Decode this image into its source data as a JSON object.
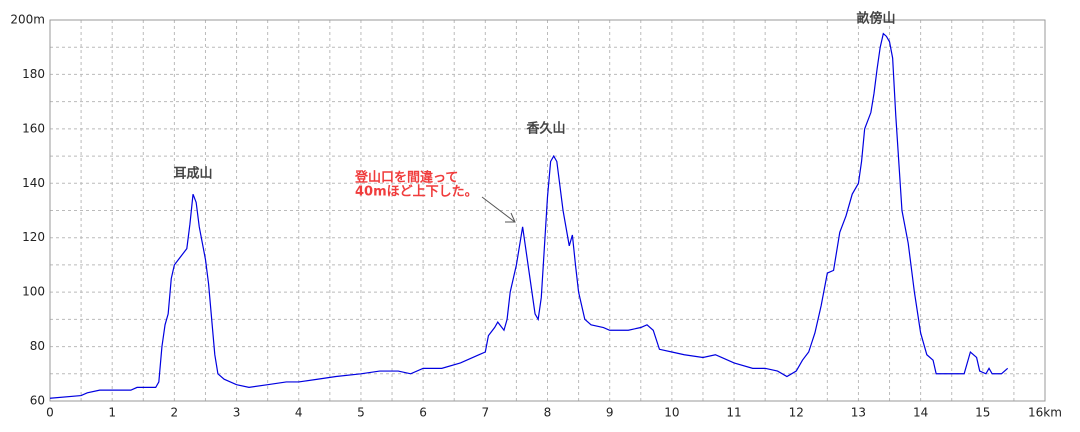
{
  "chart_data": {
    "type": "line",
    "x": [
      0,
      0.5,
      0.6,
      0.8,
      1.0,
      1.3,
      1.4,
      1.7,
      1.75,
      1.8,
      1.85,
      1.9,
      1.95,
      2.0,
      2.1,
      2.2,
      2.25,
      2.3,
      2.35,
      2.4,
      2.5,
      2.55,
      2.6,
      2.65,
      2.7,
      2.8,
      3.0,
      3.2,
      3.5,
      3.8,
      4.0,
      4.3,
      4.6,
      5.0,
      5.3,
      5.6,
      5.8,
      6.0,
      6.3,
      6.6,
      6.9,
      7.0,
      7.05,
      7.15,
      7.2,
      7.3,
      7.35,
      7.4,
      7.5,
      7.6,
      7.7,
      7.8,
      7.85,
      7.9,
      8.0,
      8.05,
      8.1,
      8.15,
      8.25,
      8.35,
      8.4,
      8.45,
      8.5,
      8.6,
      8.7,
      8.9,
      9.0,
      9.3,
      9.5,
      9.6,
      9.7,
      9.8,
      10.0,
      10.2,
      10.5,
      10.7,
      10.8,
      11.0,
      11.3,
      11.5,
      11.7,
      11.85,
      12.0,
      12.1,
      12.2,
      12.3,
      12.4,
      12.5,
      12.6,
      12.65,
      12.7,
      12.8,
      12.9,
      13.0,
      13.05,
      13.1,
      13.2,
      13.25,
      13.3,
      13.35,
      13.4,
      13.45,
      13.5,
      13.55,
      13.6,
      13.7,
      13.8,
      13.9,
      14.0,
      14.1,
      14.2,
      14.25,
      14.4,
      14.6,
      14.7,
      14.8,
      14.9,
      14.95,
      15.05,
      15.1,
      15.15,
      15.3,
      15.4
    ],
    "series": [
      {
        "color": "#0000e0",
        "values": [
          61,
          62,
          63,
          64,
          64,
          64,
          65,
          65,
          67,
          80,
          88,
          92,
          105,
          110,
          113,
          116,
          125,
          136,
          133,
          124,
          112,
          103,
          90,
          77,
          70,
          68,
          66,
          65,
          66,
          67,
          67,
          68,
          69,
          70,
          71,
          71,
          70,
          72,
          72,
          74,
          77,
          78,
          84,
          87,
          89,
          86,
          90,
          100,
          110,
          124,
          108,
          92,
          90,
          98,
          135,
          148,
          150,
          148,
          130,
          117,
          121,
          110,
          100,
          90,
          88,
          87,
          86,
          86,
          87,
          88,
          86,
          79,
          78,
          77,
          76,
          77,
          76,
          74,
          72,
          72,
          71,
          69,
          71,
          75,
          78,
          85,
          95,
          107,
          108,
          115,
          122,
          128,
          136,
          140,
          148,
          160,
          166,
          173,
          182,
          190,
          195,
          194,
          192,
          186,
          165,
          130,
          118,
          100,
          85,
          77,
          75,
          70,
          70,
          70,
          70,
          78,
          76,
          71,
          70,
          72,
          70,
          70,
          72
        ]
      }
    ],
    "xlim": [
      0,
      16
    ],
    "xticks": [
      0,
      1,
      2,
      3,
      4,
      5,
      6,
      7,
      8,
      9,
      10,
      11,
      12,
      13,
      14,
      15,
      {
        "value": 16,
        "label": "16km"
      }
    ],
    "ylim": [
      60,
      200
    ],
    "yticks": [
      60,
      80,
      100,
      120,
      140,
      160,
      180,
      {
        "value": 200,
        "label": "200m"
      }
    ],
    "grid": true,
    "annotations": [
      {
        "text": "耳成山"
      },
      {
        "text": "香久山"
      },
      {
        "text": "畝傍山"
      },
      {
        "lines": [
          "登山口を間違って",
          "40mほど上下した。"
        ]
      }
    ]
  }
}
